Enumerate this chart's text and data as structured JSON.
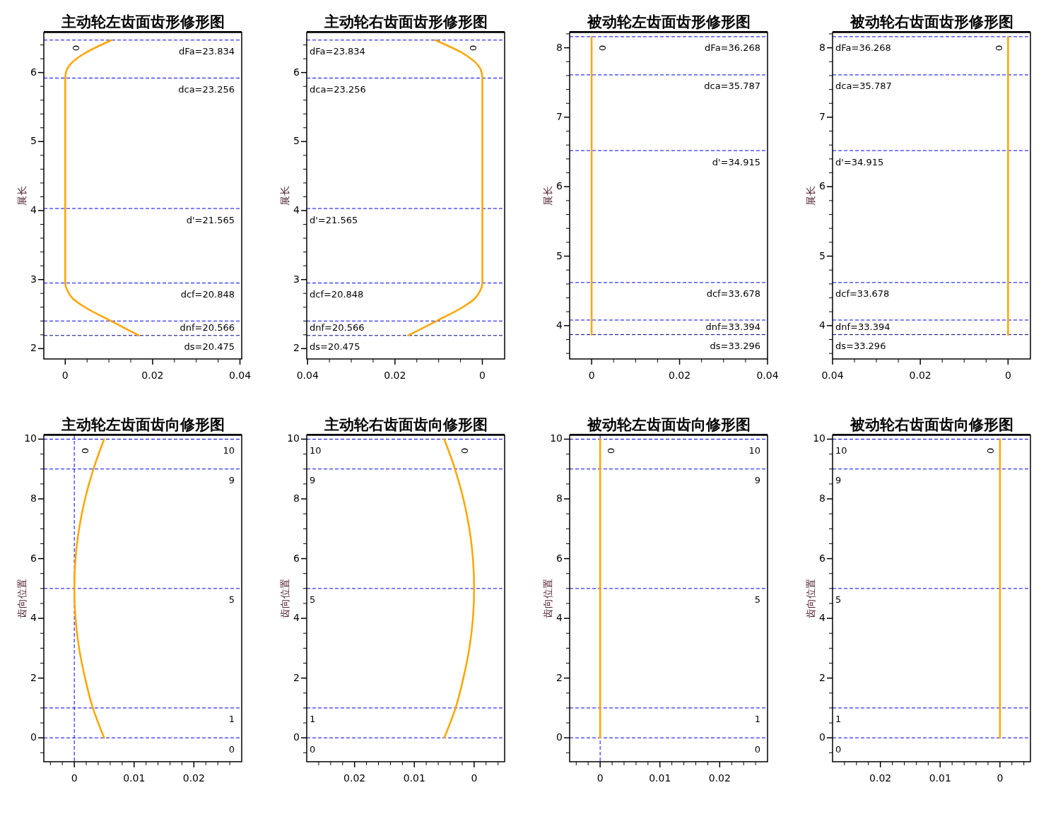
{
  "chart_data": [
    {
      "type": "line",
      "title": "主动轮左齿面齿形修形图",
      "ylabel": "展长",
      "xlim": [
        -0.0049,
        0.0404
      ],
      "ylim": [
        1.85,
        6.58
      ],
      "xticks": [
        0,
        {
          "value": 0.005,
          "label": null
        },
        {
          "value": 0.01,
          "label": null
        },
        {
          "value": 0.015,
          "label": null
        },
        0.02,
        {
          "value": 0.025,
          "label": null
        },
        {
          "value": 0.03,
          "label": null
        },
        {
          "value": 0.035,
          "label": null
        },
        0.04
      ],
      "yticks": [
        2,
        {
          "value": 2.2,
          "label": null
        },
        {
          "value": 2.4,
          "label": null
        },
        {
          "value": 2.6,
          "label": null
        },
        {
          "value": 2.8,
          "label": null
        },
        3,
        {
          "value": 3.2,
          "label": null
        },
        {
          "value": 3.4,
          "label": null
        },
        {
          "value": 3.6,
          "label": null
        },
        {
          "value": 3.8,
          "label": null
        },
        4,
        {
          "value": 4.2,
          "label": null
        },
        {
          "value": 4.4,
          "label": null
        },
        {
          "value": 4.6,
          "label": null
        },
        {
          "value": 4.8,
          "label": null
        },
        5,
        {
          "value": 5.2,
          "label": null
        },
        {
          "value": 5.4,
          "label": null
        },
        {
          "value": 5.6,
          "label": null
        },
        {
          "value": 5.8,
          "label": null
        },
        6,
        {
          "value": 6.2,
          "label": null
        },
        {
          "value": 6.4,
          "label": null
        }
      ],
      "series": [
        {
          "color": "#ffa500",
          "x": [
            0.0169,
            0.0105,
            0.0045,
            0.0018,
            0.0005,
            0,
            0,
            0.0003,
            0.0015,
            0.0045,
            0.0106
          ],
          "values": [
            2.19,
            2.4,
            2.6,
            2.72,
            2.84,
            2.95,
            5.92,
            6.03,
            6.14,
            6.28,
            6.47
          ]
        }
      ],
      "ref_lines": [
        {
          "axis": "y",
          "value": 6.47,
          "color": "#0000ff",
          "line_style": "dashed"
        },
        {
          "axis": "y",
          "value": 5.92,
          "color": "#0000ff",
          "line_style": "dashed"
        },
        {
          "axis": "y",
          "value": 4.03,
          "color": "#0000ff",
          "line_style": "dashed"
        },
        {
          "axis": "y",
          "value": 2.95,
          "color": "#0000ff",
          "line_style": "dashed"
        },
        {
          "axis": "y",
          "value": 2.4,
          "color": "#0000ff",
          "line_style": "dashed"
        },
        {
          "axis": "y",
          "value": 2.19,
          "color": "#000080",
          "line_style": "dashed"
        }
      ],
      "annotations": [
        "0",
        {
          "text": "dFa=23.834",
          "y": 6.47
        },
        {
          "text": "dca=23.256",
          "y": 5.92
        },
        {
          "text": "d'=21.565",
          "y": 4.03
        },
        {
          "text": "dcf=20.848",
          "y": 2.95
        },
        {
          "text": "dnf=20.566",
          "y": 2.4
        },
        {
          "text": "ds=20.475",
          "y": 2.19
        }
      ]
    },
    {
      "type": "line",
      "title": "主动轮右齿面齿形修形图",
      "ylabel": "展长",
      "xlim": [
        0.0402,
        -0.0051
      ],
      "ylim": [
        1.85,
        6.58
      ],
      "xticks": [
        0,
        {
          "value": 0.005,
          "label": null
        },
        {
          "value": 0.01,
          "label": null
        },
        {
          "value": 0.015,
          "label": null
        },
        0.02,
        {
          "value": 0.025,
          "label": null
        },
        {
          "value": 0.03,
          "label": null
        },
        {
          "value": 0.035,
          "label": null
        },
        0.04
      ],
      "yticks": [
        2,
        {
          "value": 2.2,
          "label": null
        },
        {
          "value": 2.4,
          "label": null
        },
        {
          "value": 2.6,
          "label": null
        },
        {
          "value": 2.8,
          "label": null
        },
        3,
        {
          "value": 3.2,
          "label": null
        },
        {
          "value": 3.4,
          "label": null
        },
        {
          "value": 3.6,
          "label": null
        },
        {
          "value": 3.8,
          "label": null
        },
        4,
        {
          "value": 4.2,
          "label": null
        },
        {
          "value": 4.4,
          "label": null
        },
        {
          "value": 4.6,
          "label": null
        },
        {
          "value": 4.8,
          "label": null
        },
        5,
        {
          "value": 5.2,
          "label": null
        },
        {
          "value": 5.4,
          "label": null
        },
        {
          "value": 5.6,
          "label": null
        },
        {
          "value": 5.8,
          "label": null
        },
        6,
        {
          "value": 6.2,
          "label": null
        },
        {
          "value": 6.4,
          "label": null
        }
      ],
      "series": [
        {
          "color": "#ffa500",
          "x": [
            0.017,
            0.0105,
            0.0045,
            0.0018,
            0.0005,
            0,
            0,
            0.0003,
            0.0015,
            0.0045,
            0.0108
          ],
          "values": [
            2.19,
            2.4,
            2.6,
            2.72,
            2.84,
            2.95,
            5.92,
            6.03,
            6.14,
            6.28,
            6.47
          ]
        }
      ],
      "ref_lines": [
        {
          "axis": "y",
          "value": 6.47,
          "color": "#0000ff",
          "line_style": "dashed"
        },
        {
          "axis": "y",
          "value": 5.92,
          "color": "#0000ff",
          "line_style": "dashed"
        },
        {
          "axis": "y",
          "value": 4.03,
          "color": "#0000ff",
          "line_style": "dashed"
        },
        {
          "axis": "y",
          "value": 2.95,
          "color": "#0000ff",
          "line_style": "dashed"
        },
        {
          "axis": "y",
          "value": 2.4,
          "color": "#0000ff",
          "line_style": "dashed"
        },
        {
          "axis": "y",
          "value": 2.19,
          "color": "#000080",
          "line_style": "dashed"
        }
      ],
      "annotations": [
        "0",
        {
          "text": "dFa=23.834",
          "y": 6.47
        },
        {
          "text": "dca=23.256",
          "y": 5.92
        },
        {
          "text": "d'=21.565",
          "y": 4.03
        },
        {
          "text": "dcf=20.848",
          "y": 2.95
        },
        {
          "text": "dnf=20.566",
          "y": 2.4
        },
        {
          "text": "ds=20.475",
          "y": 2.19
        }
      ]
    },
    {
      "type": "line",
      "title": "被动轮左齿面齿形修形图",
      "ylabel": "展长",
      "xlim": [
        -0.005,
        0.04
      ],
      "ylim": [
        3.52,
        8.22
      ],
      "xticks": [
        0,
        {
          "value": 0.005,
          "label": null
        },
        {
          "value": 0.01,
          "label": null
        },
        {
          "value": 0.015,
          "label": null
        },
        0.02,
        {
          "value": 0.025,
          "label": null
        },
        {
          "value": 0.03,
          "label": null
        },
        {
          "value": 0.035,
          "label": null
        },
        0.04
      ],
      "yticks": [
        {
          "value": 3.6,
          "label": null
        },
        {
          "value": 3.8,
          "label": null
        },
        4,
        {
          "value": 4.2,
          "label": null
        },
        {
          "value": 4.4,
          "label": null
        },
        {
          "value": 4.6,
          "label": null
        },
        {
          "value": 4.8,
          "label": null
        },
        5,
        {
          "value": 5.2,
          "label": null
        },
        {
          "value": 5.4,
          "label": null
        },
        {
          "value": 5.6,
          "label": null
        },
        {
          "value": 5.8,
          "label": null
        },
        6,
        {
          "value": 6.2,
          "label": null
        },
        {
          "value": 6.4,
          "label": null
        },
        {
          "value": 6.6,
          "label": null
        },
        {
          "value": 6.8,
          "label": null
        },
        7,
        {
          "value": 7.2,
          "label": null
        },
        {
          "value": 7.4,
          "label": null
        },
        {
          "value": 7.6,
          "label": null
        },
        {
          "value": 7.8,
          "label": null
        },
        8,
        {
          "value": 8.2,
          "label": null
        }
      ],
      "series": [
        {
          "color": "#ffa500",
          "x": [
            0,
            0
          ],
          "values": [
            3.87,
            8.16
          ]
        }
      ],
      "ref_lines": [
        {
          "axis": "y",
          "value": 8.16,
          "color": "#0000ff",
          "line_style": "dashed"
        },
        {
          "axis": "y",
          "value": 7.61,
          "color": "#0000ff",
          "line_style": "dashed"
        },
        {
          "axis": "y",
          "value": 6.52,
          "color": "#0000ff",
          "line_style": "dashed"
        },
        {
          "axis": "y",
          "value": 4.62,
          "color": "#0000ff",
          "line_style": "dashed"
        },
        {
          "axis": "y",
          "value": 4.08,
          "color": "#0000ff",
          "line_style": "dashed"
        },
        {
          "axis": "y",
          "value": 3.87,
          "color": "#000080",
          "line_style": "dashed"
        }
      ],
      "annotations": [
        "0",
        {
          "text": "dFa=36.268",
          "y": 8.16
        },
        {
          "text": "dca=35.787",
          "y": 7.61
        },
        {
          "text": "d'=34.915",
          "y": 6.52
        },
        {
          "text": "dcf=33.678",
          "y": 4.62
        },
        {
          "text": "dnf=33.394",
          "y": 4.08
        },
        {
          "text": "ds=33.296",
          "y": 3.87
        }
      ]
    },
    {
      "type": "line",
      "title": "被动轮右齿面齿形修形图",
      "ylabel": "展长",
      "xlim": [
        0.04,
        -0.0051
      ],
      "ylim": [
        3.52,
        8.22
      ],
      "xticks": [
        0,
        {
          "value": 0.005,
          "label": null
        },
        {
          "value": 0.01,
          "label": null
        },
        {
          "value": 0.015,
          "label": null
        },
        0.02,
        {
          "value": 0.025,
          "label": null
        },
        {
          "value": 0.03,
          "label": null
        },
        {
          "value": 0.035,
          "label": null
        },
        0.04
      ],
      "yticks": [
        {
          "value": 3.6,
          "label": null
        },
        {
          "value": 3.8,
          "label": null
        },
        4,
        {
          "value": 4.2,
          "label": null
        },
        {
          "value": 4.4,
          "label": null
        },
        {
          "value": 4.6,
          "label": null
        },
        {
          "value": 4.8,
          "label": null
        },
        5,
        {
          "value": 5.2,
          "label": null
        },
        {
          "value": 5.4,
          "label": null
        },
        {
          "value": 5.6,
          "label": null
        },
        {
          "value": 5.8,
          "label": null
        },
        6,
        {
          "value": 6.2,
          "label": null
        },
        {
          "value": 6.4,
          "label": null
        },
        {
          "value": 6.6,
          "label": null
        },
        {
          "value": 6.8,
          "label": null
        },
        7,
        {
          "value": 7.2,
          "label": null
        },
        {
          "value": 7.4,
          "label": null
        },
        {
          "value": 7.6,
          "label": null
        },
        {
          "value": 7.8,
          "label": null
        },
        8,
        {
          "value": 8.2,
          "label": null
        }
      ],
      "series": [
        {
          "color": "#ffa500",
          "x": [
            0,
            0
          ],
          "values": [
            3.87,
            8.16
          ]
        }
      ],
      "ref_lines": [
        {
          "axis": "y",
          "value": 8.16,
          "color": "#0000ff",
          "line_style": "dashed"
        },
        {
          "axis": "y",
          "value": 7.61,
          "color": "#0000ff",
          "line_style": "dashed"
        },
        {
          "axis": "y",
          "value": 6.52,
          "color": "#0000ff",
          "line_style": "dashed"
        },
        {
          "axis": "y",
          "value": 4.62,
          "color": "#0000ff",
          "line_style": "dashed"
        },
        {
          "axis": "y",
          "value": 4.08,
          "color": "#0000ff",
          "line_style": "dashed"
        },
        {
          "axis": "y",
          "value": 3.87,
          "color": "#000080",
          "line_style": "dashed"
        }
      ],
      "annotations": [
        "0",
        {
          "text": "dFa=36.268",
          "y": 8.16
        },
        {
          "text": "dca=35.787",
          "y": 7.61
        },
        {
          "text": "d'=34.915",
          "y": 6.52
        },
        {
          "text": "dcf=33.678",
          "y": 4.62
        },
        {
          "text": "dnf=33.394",
          "y": 4.08
        },
        {
          "text": "ds=33.296",
          "y": 3.87
        }
      ]
    },
    {
      "type": "line",
      "title": "主动轮左齿面齿向修形图",
      "ylabel": "齿向位置",
      "xlim": [
        -0.0051,
        0.028
      ],
      "ylim": [
        -0.8,
        10.13
      ],
      "xticks": [
        {
          "value": -0.004,
          "label": null
        },
        {
          "value": -0.002,
          "label": null
        },
        0,
        {
          "value": 0.002,
          "label": null
        },
        {
          "value": 0.004,
          "label": null
        },
        {
          "value": 0.006,
          "label": null
        },
        {
          "value": 0.008,
          "label": null
        },
        0.01,
        {
          "value": 0.012,
          "label": null
        },
        {
          "value": 0.014,
          "label": null
        },
        {
          "value": 0.016,
          "label": null
        },
        {
          "value": 0.018,
          "label": null
        },
        0.02,
        {
          "value": 0.022,
          "label": null
        },
        {
          "value": 0.024,
          "label": null
        },
        {
          "value": 0.026,
          "label": null
        }
      ],
      "yticks": [
        {
          "value": -0.5,
          "label": null
        },
        0,
        {
          "value": 0.5,
          "label": null
        },
        {
          "value": 1,
          "label": null
        },
        {
          "value": 1.5,
          "label": null
        },
        2,
        {
          "value": 2.5,
          "label": null
        },
        {
          "value": 3,
          "label": null
        },
        {
          "value": 3.5,
          "label": null
        },
        4,
        {
          "value": 4.5,
          "label": null
        },
        {
          "value": 5,
          "label": null
        },
        {
          "value": 5.5,
          "label": null
        },
        6,
        {
          "value": 6.5,
          "label": null
        },
        {
          "value": 7,
          "label": null
        },
        {
          "value": 7.5,
          "label": null
        },
        8,
        {
          "value": 8.5,
          "label": null
        },
        {
          "value": 9,
          "label": null
        },
        {
          "value": 9.5,
          "label": null
        },
        10
      ],
      "series": [
        {
          "color": "#ffa500",
          "x": [
            0.005,
            0.0031,
            0.0018,
            0.0008,
            0.0002,
            0,
            0.0002,
            0.0008,
            0.0018,
            0.0032,
            0.005
          ],
          "values": [
            0,
            1,
            2,
            3,
            4,
            5,
            6,
            7,
            8,
            9,
            10
          ]
        }
      ],
      "ref_lines": [
        {
          "axis": "y",
          "value": 10,
          "label": "10",
          "color": "#0000ff",
          "line_style": "dashed"
        },
        {
          "axis": "y",
          "value": 9,
          "label": "9",
          "color": "#0000ff",
          "line_style": "dashed"
        },
        {
          "axis": "y",
          "value": 5,
          "label": "5",
          "color": "#0000ff",
          "line_style": "dashed"
        },
        {
          "axis": "y",
          "value": 1,
          "label": "1",
          "color": "#0000ff",
          "line_style": "dashed"
        },
        {
          "axis": "y",
          "value": 0,
          "label": "0",
          "color": "#0000ff",
          "line_style": "dashed"
        },
        {
          "axis": "x",
          "value": 0,
          "color": "#0000ff",
          "line_style": "dashed"
        }
      ],
      "annotations": [
        "0"
      ]
    },
    {
      "type": "line",
      "title": "主动轮右齿面齿向修形图",
      "ylabel": "齿向位置",
      "xlim": [
        0.028,
        -0.0051
      ],
      "ylim": [
        -0.8,
        10.13
      ],
      "xticks": [
        {
          "value": -0.004,
          "label": null
        },
        {
          "value": -0.002,
          "label": null
        },
        0,
        {
          "value": 0.002,
          "label": null
        },
        {
          "value": 0.004,
          "label": null
        },
        {
          "value": 0.006,
          "label": null
        },
        {
          "value": 0.008,
          "label": null
        },
        0.01,
        {
          "value": 0.012,
          "label": null
        },
        {
          "value": 0.014,
          "label": null
        },
        {
          "value": 0.016,
          "label": null
        },
        {
          "value": 0.018,
          "label": null
        },
        0.02,
        {
          "value": 0.022,
          "label": null
        },
        {
          "value": 0.024,
          "label": null
        },
        {
          "value": 0.026,
          "label": null
        }
      ],
      "yticks": [
        {
          "value": -0.5,
          "label": null
        },
        0,
        {
          "value": 0.5,
          "label": null
        },
        {
          "value": 1,
          "label": null
        },
        {
          "value": 1.5,
          "label": null
        },
        2,
        {
          "value": 2.5,
          "label": null
        },
        {
          "value": 3,
          "label": null
        },
        {
          "value": 3.5,
          "label": null
        },
        4,
        {
          "value": 4.5,
          "label": null
        },
        {
          "value": 5,
          "label": null
        },
        {
          "value": 5.5,
          "label": null
        },
        6,
        {
          "value": 6.5,
          "label": null
        },
        {
          "value": 7,
          "label": null
        },
        {
          "value": 7.5,
          "label": null
        },
        8,
        {
          "value": 8.5,
          "label": null
        },
        {
          "value": 9,
          "label": null
        },
        {
          "value": 9.5,
          "label": null
        },
        10
      ],
      "series": [
        {
          "color": "#ffa500",
          "x": [
            0.005,
            0.0031,
            0.0018,
            0.0008,
            0.0002,
            0,
            0.0002,
            0.0008,
            0.0018,
            0.0032,
            0.005
          ],
          "values": [
            0,
            1,
            2,
            3,
            4,
            5,
            6,
            7,
            8,
            9,
            10
          ]
        }
      ],
      "ref_lines": [
        {
          "axis": "y",
          "value": 10,
          "label": "10",
          "color": "#0000ff",
          "line_style": "dashed"
        },
        {
          "axis": "y",
          "value": 9,
          "label": "9",
          "color": "#0000ff",
          "line_style": "dashed"
        },
        {
          "axis": "y",
          "value": 5,
          "label": "5",
          "color": "#0000ff",
          "line_style": "dashed"
        },
        {
          "axis": "y",
          "value": 1,
          "label": "1",
          "color": "#0000ff",
          "line_style": "dashed"
        },
        {
          "axis": "y",
          "value": 0,
          "label": "0",
          "color": "#0000ff",
          "line_style": "dashed"
        }
      ],
      "annotations": [
        "0"
      ]
    },
    {
      "type": "line",
      "title": "被动轮左齿面齿向修形图",
      "ylabel": "齿向位置",
      "xlim": [
        -0.0051,
        0.028
      ],
      "ylim": [
        -0.8,
        10.13
      ],
      "xticks": [
        {
          "value": -0.004,
          "label": null
        },
        {
          "value": -0.002,
          "label": null
        },
        0,
        {
          "value": 0.002,
          "label": null
        },
        {
          "value": 0.004,
          "label": null
        },
        {
          "value": 0.006,
          "label": null
        },
        {
          "value": 0.008,
          "label": null
        },
        0.01,
        {
          "value": 0.012,
          "label": null
        },
        {
          "value": 0.014,
          "label": null
        },
        {
          "value": 0.016,
          "label": null
        },
        {
          "value": 0.018,
          "label": null
        },
        0.02,
        {
          "value": 0.022,
          "label": null
        },
        {
          "value": 0.024,
          "label": null
        },
        {
          "value": 0.026,
          "label": null
        }
      ],
      "yticks": [
        {
          "value": -0.5,
          "label": null
        },
        0,
        {
          "value": 0.5,
          "label": null
        },
        {
          "value": 1,
          "label": null
        },
        {
          "value": 1.5,
          "label": null
        },
        2,
        {
          "value": 2.5,
          "label": null
        },
        {
          "value": 3,
          "label": null
        },
        {
          "value": 3.5,
          "label": null
        },
        4,
        {
          "value": 4.5,
          "label": null
        },
        {
          "value": 5,
          "label": null
        },
        {
          "value": 5.5,
          "label": null
        },
        6,
        {
          "value": 6.5,
          "label": null
        },
        {
          "value": 7,
          "label": null
        },
        {
          "value": 7.5,
          "label": null
        },
        8,
        {
          "value": 8.5,
          "label": null
        },
        {
          "value": 9,
          "label": null
        },
        {
          "value": 9.5,
          "label": null
        },
        10
      ],
      "series": [
        {
          "color": "#ffa500",
          "x": [
            0,
            0
          ],
          "values": [
            0,
            10
          ]
        }
      ],
      "ref_lines": [
        {
          "axis": "y",
          "value": 10,
          "label": "10",
          "color": "#0000ff",
          "line_style": "dashed"
        },
        {
          "axis": "y",
          "value": 9,
          "label": "9",
          "color": "#0000ff",
          "line_style": "dashed"
        },
        {
          "axis": "y",
          "value": 5,
          "label": "5",
          "color": "#0000ff",
          "line_style": "dashed"
        },
        {
          "axis": "y",
          "value": 1,
          "label": "1",
          "color": "#0000ff",
          "line_style": "dashed"
        },
        {
          "axis": "y",
          "value": 0,
          "label": "0",
          "color": "#0000ff",
          "line_style": "dashed"
        },
        {
          "axis": "x",
          "value": 0,
          "color": "#0000ff",
          "line_style": "dashed"
        }
      ],
      "annotations": [
        "0"
      ]
    },
    {
      "type": "line",
      "title": "被动轮右齿面齿向修形图",
      "ylabel": "齿向位置",
      "xlim": [
        0.028,
        -0.0051
      ],
      "ylim": [
        -0.8,
        10.13
      ],
      "xticks": [
        {
          "value": -0.004,
          "label": null
        },
        {
          "value": -0.002,
          "label": null
        },
        0,
        {
          "value": 0.002,
          "label": null
        },
        {
          "value": 0.004,
          "label": null
        },
        {
          "value": 0.006,
          "label": null
        },
        {
          "value": 0.008,
          "label": null
        },
        0.01,
        {
          "value": 0.012,
          "label": null
        },
        {
          "value": 0.014,
          "label": null
        },
        {
          "value": 0.016,
          "label": null
        },
        {
          "value": 0.018,
          "label": null
        },
        0.02,
        {
          "value": 0.022,
          "label": null
        },
        {
          "value": 0.024,
          "label": null
        },
        {
          "value": 0.026,
          "label": null
        }
      ],
      "yticks": [
        {
          "value": -0.5,
          "label": null
        },
        0,
        {
          "value": 0.5,
          "label": null
        },
        {
          "value": 1,
          "label": null
        },
        {
          "value": 1.5,
          "label": null
        },
        2,
        {
          "value": 2.5,
          "label": null
        },
        {
          "value": 3,
          "label": null
        },
        {
          "value": 3.5,
          "label": null
        },
        4,
        {
          "value": 4.5,
          "label": null
        },
        {
          "value": 5,
          "label": null
        },
        {
          "value": 5.5,
          "label": null
        },
        6,
        {
          "value": 6.5,
          "label": null
        },
        {
          "value": 7,
          "label": null
        },
        {
          "value": 7.5,
          "label": null
        },
        8,
        {
          "value": 8.5,
          "label": null
        },
        {
          "value": 9,
          "label": null
        },
        {
          "value": 9.5,
          "label": null
        },
        10
      ],
      "series": [
        {
          "color": "#ffa500",
          "x": [
            0,
            0
          ],
          "values": [
            0,
            10
          ]
        }
      ],
      "ref_lines": [
        {
          "axis": "y",
          "value": 10,
          "label": "10",
          "color": "#0000ff",
          "line_style": "dashed"
        },
        {
          "axis": "y",
          "value": 9,
          "label": "9",
          "color": "#0000ff",
          "line_style": "dashed"
        },
        {
          "axis": "y",
          "value": 5,
          "label": "5",
          "color": "#0000ff",
          "line_style": "dashed"
        },
        {
          "axis": "y",
          "value": 1,
          "label": "1",
          "color": "#0000ff",
          "line_style": "dashed"
        },
        {
          "axis": "y",
          "value": 0,
          "label": "0",
          "color": "#0000ff",
          "line_style": "dashed"
        }
      ],
      "annotations": [
        "0"
      ]
    }
  ]
}
